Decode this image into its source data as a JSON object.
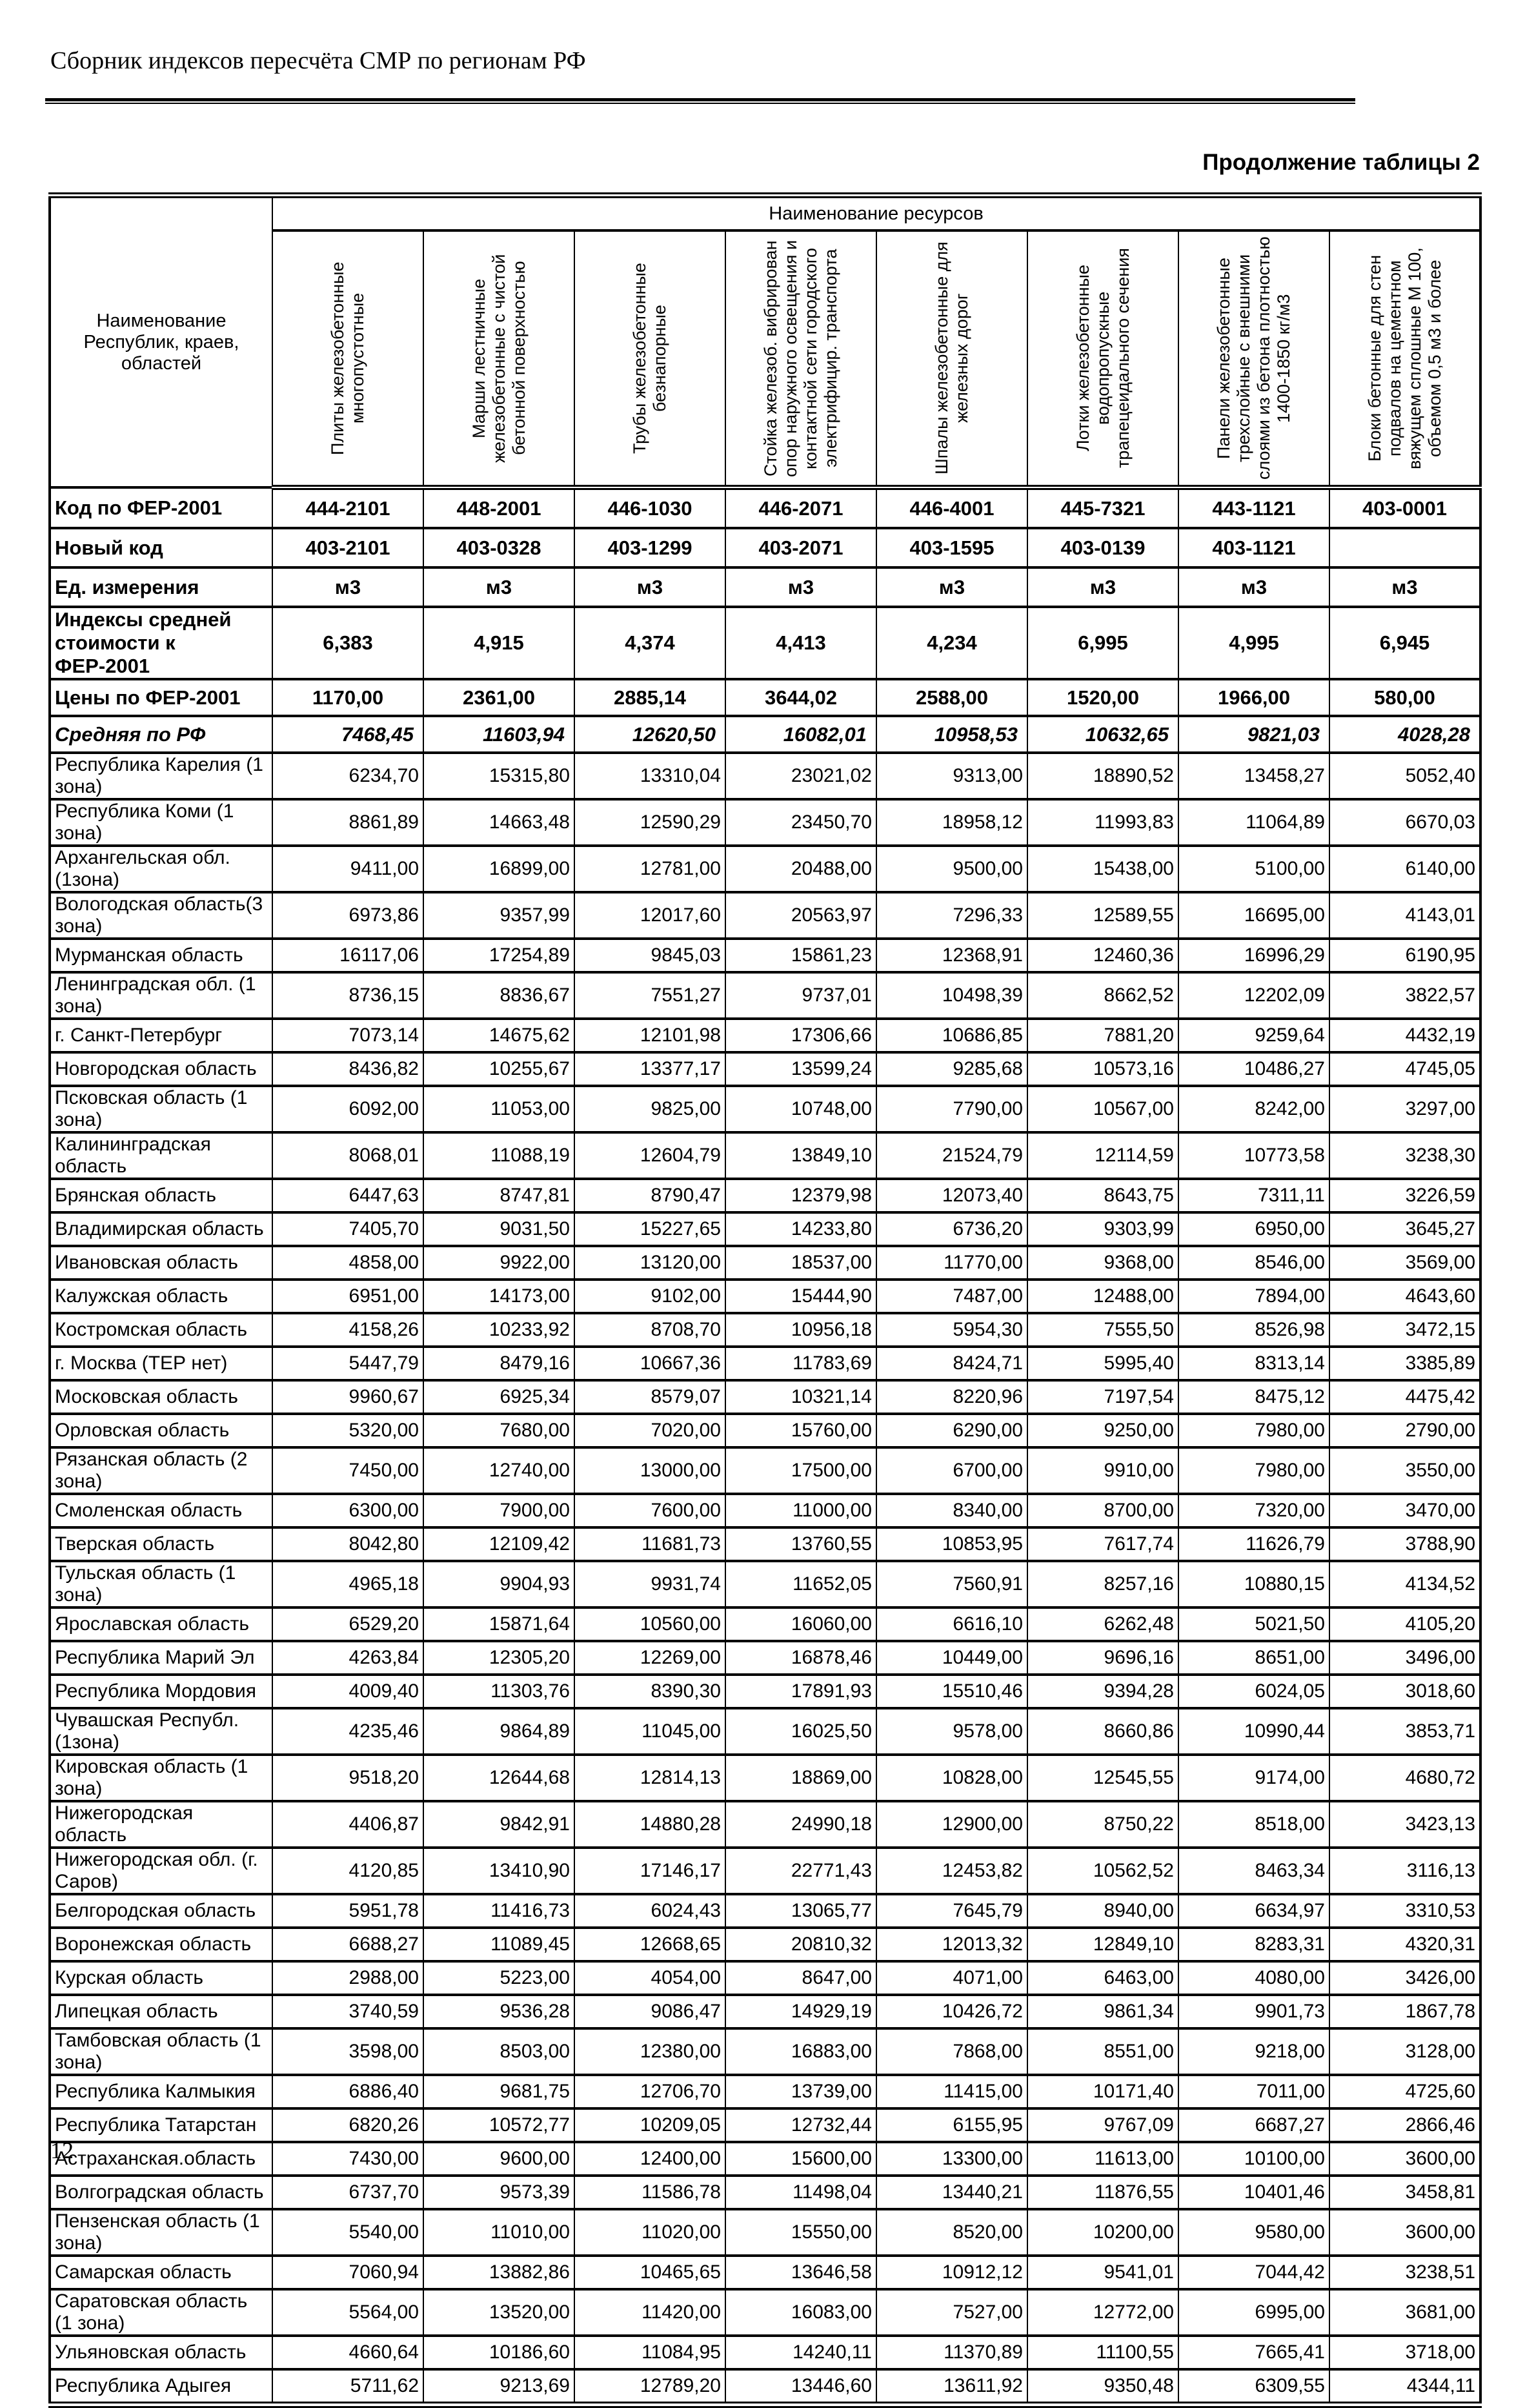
{
  "page": {
    "title": "Сборник индексов пересчёта СМР  по регионам РФ",
    "caption": "Продолжение таблицы 2",
    "page_number": "12"
  },
  "table": {
    "resources_header": "Наименование ресурсов",
    "region_header": "Наименование Республик, краев, областей",
    "resource_columns": [
      "Плиты железобетонные многопустотные",
      "Марши лестничные железобетонные с чистой бетонной поверхностью",
      "Трубы железобетонные безнапорные",
      "Стойка железоб. вибрирован опор наружного освещения и контактной сети городского электрифицир. транспорта",
      "Шпалы железобетонные для железных дорог",
      "Лотки железобетонные водопропускные трапецеидального сечения",
      "Панели железобетонные трехслойные с внешними слоями из бетона плотностью 1400-1850 кг/м3",
      "Блоки бетонные для стен подвалов на цементном вяжущем сплошные М 100, объемом 0,5 м3 и более"
    ],
    "meta_rows": [
      {
        "label": "Код по ФЕР-2001",
        "style": "code",
        "values": [
          "444-2101",
          "448-2001",
          "446-1030",
          "446-2071",
          "446-4001",
          "445-7321",
          "443-1121",
          "403-0001"
        ]
      },
      {
        "label": "Новый код",
        "style": "code",
        "values": [
          "403-2101",
          "403-0328",
          "403-1299",
          "403-2071",
          "403-1595",
          "403-0139",
          "403-1121",
          ""
        ]
      },
      {
        "label": "Ед. измерения",
        "style": "code",
        "values": [
          "м3",
          "м3",
          "м3",
          "м3",
          "м3",
          "м3",
          "м3",
          "м3"
        ]
      },
      {
        "label": "Индексы средней стоимости к ФЕР-2001",
        "style": "index",
        "values": [
          "6,383",
          "4,915",
          "4,374",
          "4,413",
          "4,234",
          "6,995",
          "4,995",
          "6,945"
        ]
      },
      {
        "label": "Цены по ФЕР-2001",
        "style": "price",
        "values": [
          "1170,00",
          "2361,00",
          "2885,14",
          "3644,02",
          "2588,00",
          "1520,00",
          "1966,00",
          "580,00"
        ]
      },
      {
        "label": "Средняя по РФ",
        "style": "average",
        "values": [
          "7468,45",
          "11603,94",
          "12620,50",
          "16082,01",
          "10958,53",
          "10632,65",
          "9821,03",
          "4028,28"
        ]
      }
    ],
    "regions": [
      {
        "name": "Республика Карелия (1 зона)",
        "values": [
          "6234,70",
          "15315,80",
          "13310,04",
          "23021,02",
          "9313,00",
          "18890,52",
          "13458,27",
          "5052,40"
        ]
      },
      {
        "name": "Республика Коми (1 зона)",
        "values": [
          "8861,89",
          "14663,48",
          "12590,29",
          "23450,70",
          "18958,12",
          "11993,83",
          "11064,89",
          "6670,03"
        ]
      },
      {
        "name": "Архангельская обл. (1зона)",
        "values": [
          "9411,00",
          "16899,00",
          "12781,00",
          "20488,00",
          "9500,00",
          "15438,00",
          "5100,00",
          "6140,00"
        ]
      },
      {
        "name": "Вологодская область(3 зона)",
        "values": [
          "6973,86",
          "9357,99",
          "12017,60",
          "20563,97",
          "7296,33",
          "12589,55",
          "16695,00",
          "4143,01"
        ]
      },
      {
        "name": "Мурманская область",
        "values": [
          "16117,06",
          "17254,89",
          "9845,03",
          "15861,23",
          "12368,91",
          "12460,36",
          "16996,29",
          "6190,95"
        ]
      },
      {
        "name": "Ленинградская обл. (1 зона)",
        "values": [
          "8736,15",
          "8836,67",
          "7551,27",
          "9737,01",
          "10498,39",
          "8662,52",
          "12202,09",
          "3822,57"
        ]
      },
      {
        "name": "г. Санкт-Петербург",
        "values": [
          "7073,14",
          "14675,62",
          "12101,98",
          "17306,66",
          "10686,85",
          "7881,20",
          "9259,64",
          "4432,19"
        ]
      },
      {
        "name": "Новгородская область",
        "values": [
          "8436,82",
          "10255,67",
          "13377,17",
          "13599,24",
          "9285,68",
          "10573,16",
          "10486,27",
          "4745,05"
        ]
      },
      {
        "name": "Псковская область (1 зона)",
        "values": [
          "6092,00",
          "11053,00",
          "9825,00",
          "10748,00",
          "7790,00",
          "10567,00",
          "8242,00",
          "3297,00"
        ]
      },
      {
        "name": "Калининградская область",
        "values": [
          "8068,01",
          "11088,19",
          "12604,79",
          "13849,10",
          "21524,79",
          "12114,59",
          "10773,58",
          "3238,30"
        ]
      },
      {
        "name": "Брянская область",
        "values": [
          "6447,63",
          "8747,81",
          "8790,47",
          "12379,98",
          "12073,40",
          "8643,75",
          "7311,11",
          "3226,59"
        ]
      },
      {
        "name": "Владимирская область",
        "values": [
          "7405,70",
          "9031,50",
          "15227,65",
          "14233,80",
          "6736,20",
          "9303,99",
          "6950,00",
          "3645,27"
        ]
      },
      {
        "name": "Ивановская область",
        "values": [
          "4858,00",
          "9922,00",
          "13120,00",
          "18537,00",
          "11770,00",
          "9368,00",
          "8546,00",
          "3569,00"
        ]
      },
      {
        "name": "Калужская область",
        "values": [
          "6951,00",
          "14173,00",
          "9102,00",
          "15444,90",
          "7487,00",
          "12488,00",
          "7894,00",
          "4643,60"
        ]
      },
      {
        "name": "Костромская область",
        "values": [
          "4158,26",
          "10233,92",
          "8708,70",
          "10956,18",
          "5954,30",
          "7555,50",
          "8526,98",
          "3472,15"
        ]
      },
      {
        "name": "г. Москва (ТЕР нет)",
        "values": [
          "5447,79",
          "8479,16",
          "10667,36",
          "11783,69",
          "8424,71",
          "5995,40",
          "8313,14",
          "3385,89"
        ]
      },
      {
        "name": "Московская  область",
        "values": [
          "9960,67",
          "6925,34",
          "8579,07",
          "10321,14",
          "8220,96",
          "7197,54",
          "8475,12",
          "4475,42"
        ]
      },
      {
        "name": "Орловская область",
        "values": [
          "5320,00",
          "7680,00",
          "7020,00",
          "15760,00",
          "6290,00",
          "9250,00",
          "7980,00",
          "2790,00"
        ]
      },
      {
        "name": "Рязанская область (2 зона)",
        "values": [
          "7450,00",
          "12740,00",
          "13000,00",
          "17500,00",
          "6700,00",
          "9910,00",
          "7980,00",
          "3550,00"
        ]
      },
      {
        "name": "Смоленская область",
        "values": [
          "6300,00",
          "7900,00",
          "7600,00",
          "11000,00",
          "8340,00",
          "8700,00",
          "7320,00",
          "3470,00"
        ]
      },
      {
        "name": "Тверская область",
        "values": [
          "8042,80",
          "12109,42",
          "11681,73",
          "13760,55",
          "10853,95",
          "7617,74",
          "11626,79",
          "3788,90"
        ]
      },
      {
        "name": "Тульская область (1 зона)",
        "values": [
          "4965,18",
          "9904,93",
          "9931,74",
          "11652,05",
          "7560,91",
          "8257,16",
          "10880,15",
          "4134,52"
        ]
      },
      {
        "name": "Ярославская область",
        "values": [
          "6529,20",
          "15871,64",
          "10560,00",
          "16060,00",
          "6616,10",
          "6262,48",
          "5021,50",
          "4105,20"
        ]
      },
      {
        "name": "Республика Марий Эл",
        "values": [
          "4263,84",
          "12305,20",
          "12269,00",
          "16878,46",
          "10449,00",
          "9696,16",
          "8651,00",
          "3496,00"
        ]
      },
      {
        "name": "Республика Мордовия",
        "values": [
          "4009,40",
          "11303,76",
          "8390,30",
          "17891,93",
          "15510,46",
          "9394,28",
          "6024,05",
          "3018,60"
        ]
      },
      {
        "name": "Чувашская Республ. (1зона)",
        "values": [
          "4235,46",
          "9864,89",
          "11045,00",
          "16025,50",
          "9578,00",
          "8660,86",
          "10990,44",
          "3853,71"
        ]
      },
      {
        "name": "Кировская область (1 зона)",
        "values": [
          "9518,20",
          "12644,68",
          "12814,13",
          "18869,00",
          "10828,00",
          "12545,55",
          "9174,00",
          "4680,72"
        ]
      },
      {
        "name": "Нижегородская область",
        "values": [
          "4406,87",
          "9842,91",
          "14880,28",
          "24990,18",
          "12900,00",
          "8750,22",
          "8518,00",
          "3423,13"
        ]
      },
      {
        "name": "Нижегородская обл. (г. Саров)",
        "values": [
          "4120,85",
          "13410,90",
          "17146,17",
          "22771,43",
          "12453,82",
          "10562,52",
          "8463,34",
          "3116,13"
        ]
      },
      {
        "name": "Белгородская область",
        "values": [
          "5951,78",
          "11416,73",
          "6024,43",
          "13065,77",
          "7645,79",
          "8940,00",
          "6634,97",
          "3310,53"
        ]
      },
      {
        "name": "Воронежская область",
        "values": [
          "6688,27",
          "11089,45",
          "12668,65",
          "20810,32",
          "12013,32",
          "12849,10",
          "8283,31",
          "4320,31"
        ]
      },
      {
        "name": "Курская область",
        "values": [
          "2988,00",
          "5223,00",
          "4054,00",
          "8647,00",
          "4071,00",
          "6463,00",
          "4080,00",
          "3426,00"
        ]
      },
      {
        "name": "Липецкая область",
        "values": [
          "3740,59",
          "9536,28",
          "9086,47",
          "14929,19",
          "10426,72",
          "9861,34",
          "9901,73",
          "1867,78"
        ]
      },
      {
        "name": "Тамбовская область (1 зона)",
        "values": [
          "3598,00",
          "8503,00",
          "12380,00",
          "16883,00",
          "7868,00",
          "8551,00",
          "9218,00",
          "3128,00"
        ]
      },
      {
        "name": "Республика Калмыкия",
        "values": [
          "6886,40",
          "9681,75",
          "12706,70",
          "13739,00",
          "11415,00",
          "10171,40",
          "7011,00",
          "4725,60"
        ]
      },
      {
        "name": "Республика Татарстан",
        "values": [
          "6820,26",
          "10572,77",
          "10209,05",
          "12732,44",
          "6155,95",
          "9767,09",
          "6687,27",
          "2866,46"
        ]
      },
      {
        "name": "Астраханская.область",
        "values": [
          "7430,00",
          "9600,00",
          "12400,00",
          "15600,00",
          "13300,00",
          "11613,00",
          "10100,00",
          "3600,00"
        ]
      },
      {
        "name": "Волгоградская область",
        "values": [
          "6737,70",
          "9573,39",
          "11586,78",
          "11498,04",
          "13440,21",
          "11876,55",
          "10401,46",
          "3458,81"
        ]
      },
      {
        "name": "Пензенская область (1 зона)",
        "values": [
          "5540,00",
          "11010,00",
          "11020,00",
          "15550,00",
          "8520,00",
          "10200,00",
          "9580,00",
          "3600,00"
        ]
      },
      {
        "name": "Самарская область",
        "values": [
          "7060,94",
          "13882,86",
          "10465,65",
          "13646,58",
          "10912,12",
          "9541,01",
          "7044,42",
          "3238,51"
        ]
      },
      {
        "name": "Саратовская область (1 зона)",
        "values": [
          "5564,00",
          "13520,00",
          "11420,00",
          "16083,00",
          "7527,00",
          "12772,00",
          "6995,00",
          "3681,00"
        ]
      },
      {
        "name": "Ульяновская область",
        "values": [
          "4660,64",
          "10186,60",
          "11084,95",
          "14240,11",
          "11370,89",
          "11100,55",
          "7665,41",
          "3718,00"
        ]
      },
      {
        "name": "Республика Адыгея",
        "values": [
          "5711,62",
          "9213,69",
          "12789,20",
          "13446,60",
          "13611,92",
          "9350,48",
          "6309,55",
          "4344,11"
        ]
      }
    ]
  }
}
